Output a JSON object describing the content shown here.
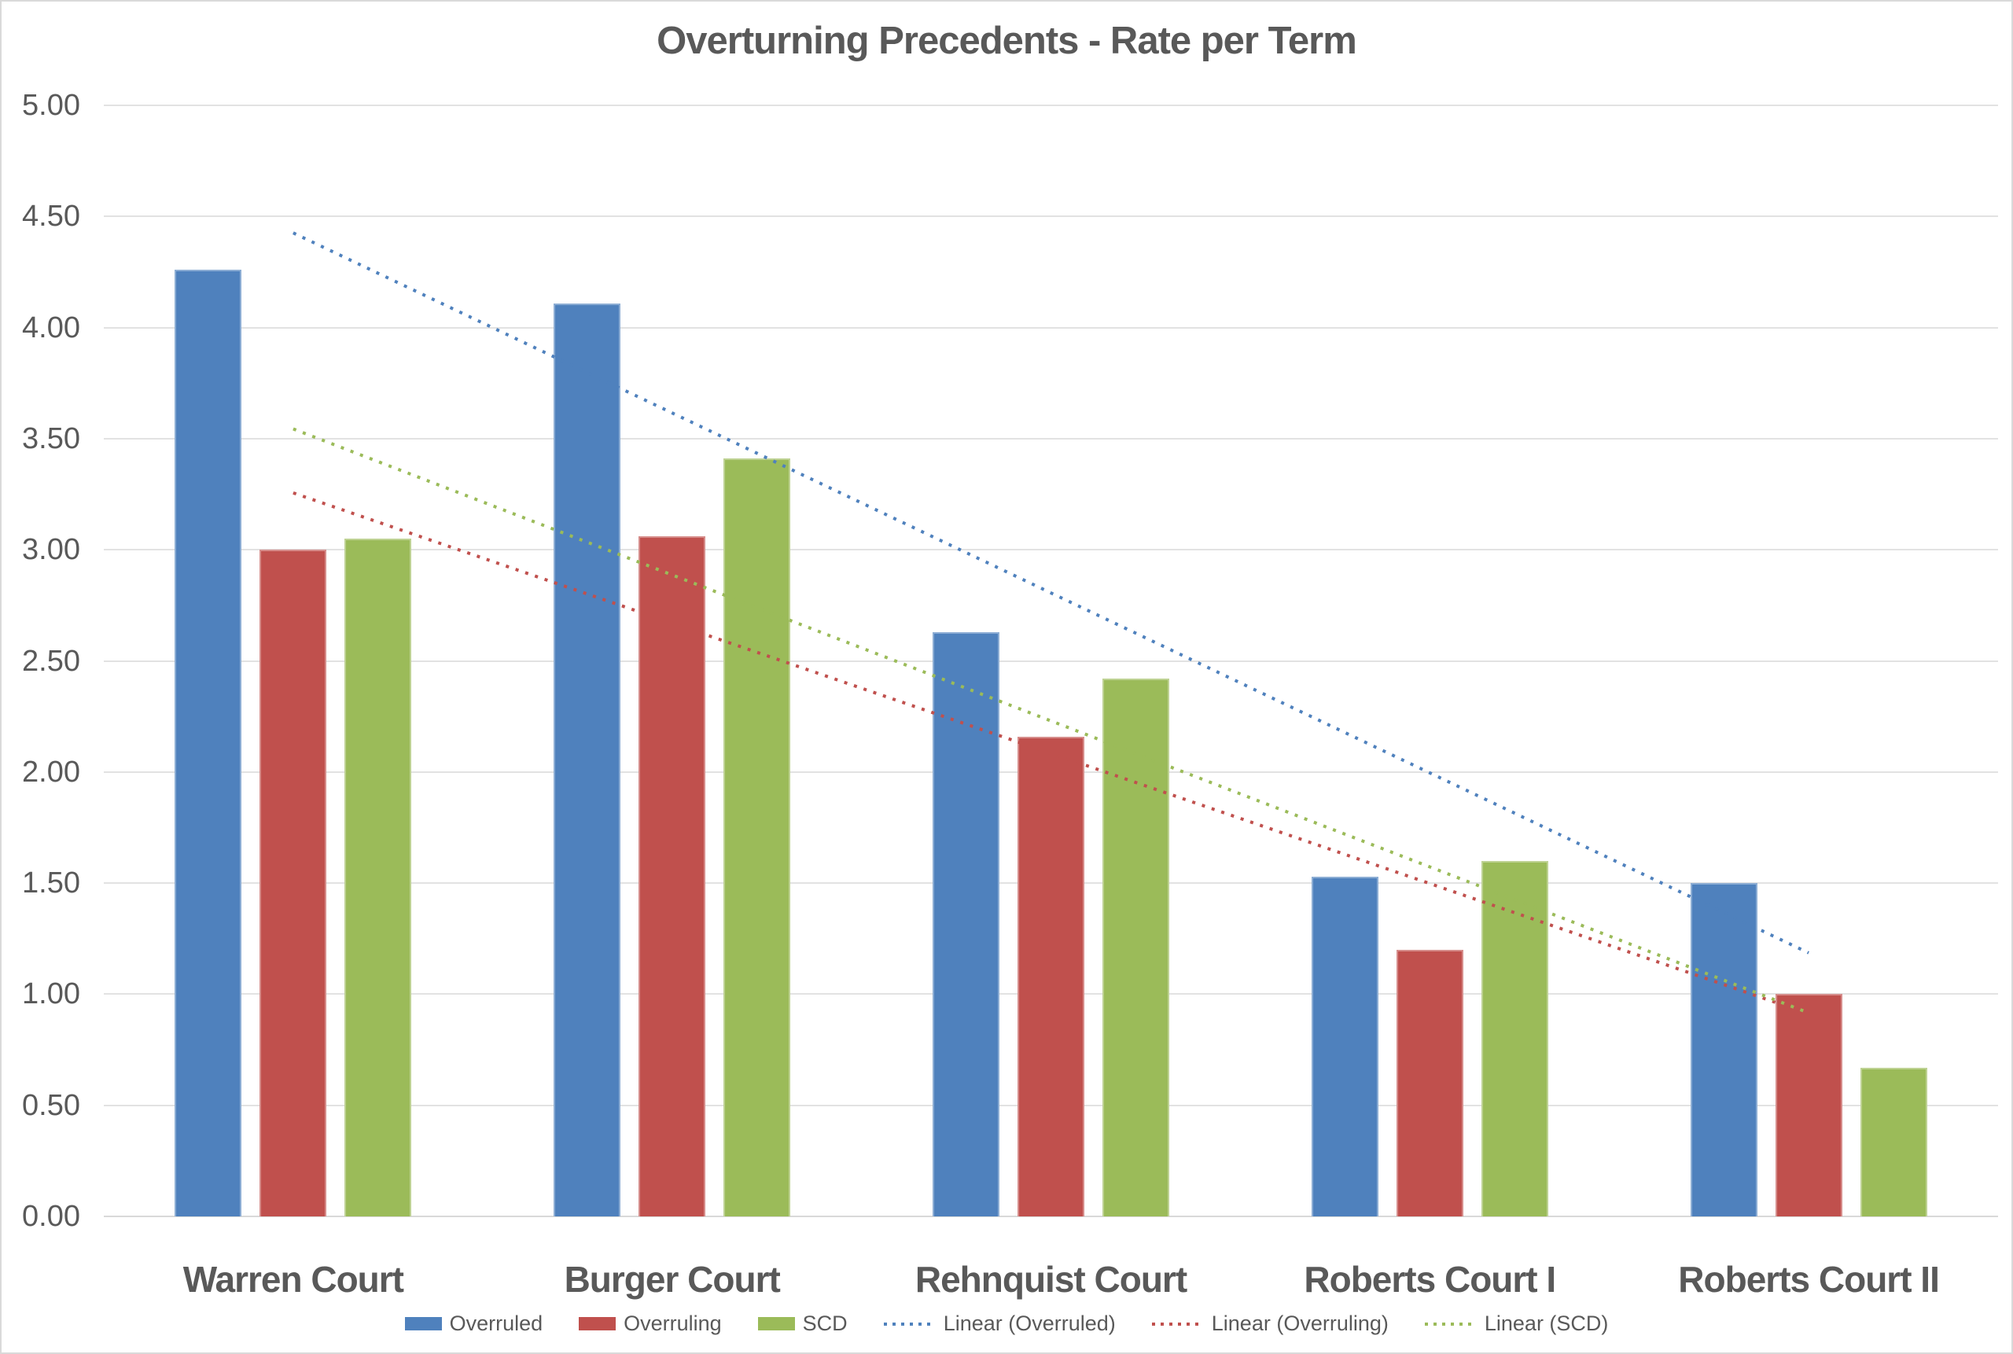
{
  "chart_data": {
    "type": "bar",
    "title": "Overturning Precedents - Rate per Term",
    "categories": [
      "Warren Court",
      "Burger Court",
      "Rehnquist Court",
      "Roberts Court I",
      "Roberts Court II"
    ],
    "series": [
      {
        "name": "Overruled",
        "color": "#4F81BD",
        "values": [
          4.26,
          4.11,
          2.63,
          1.53,
          1.5
        ]
      },
      {
        "name": "Overruling",
        "color": "#C0504D",
        "values": [
          3.0,
          3.06,
          2.16,
          1.2,
          1.0
        ]
      },
      {
        "name": "SCD",
        "color": "#9BBB59",
        "values": [
          3.05,
          3.41,
          2.42,
          1.6,
          0.67
        ]
      }
    ],
    "trendlines": [
      {
        "name": "Linear (Overruled)",
        "series_index": 0,
        "color": "#4F81BD",
        "style": "dotted"
      },
      {
        "name": "Linear (Overruling)",
        "series_index": 1,
        "color": "#C0504D",
        "style": "dotted"
      },
      {
        "name": "Linear (SCD)",
        "series_index": 2,
        "color": "#9BBB59",
        "style": "dotted"
      }
    ],
    "y_axis": {
      "min": 0,
      "max": 5,
      "step": 0.5,
      "tick_labels": [
        "0.00",
        "0.50",
        "1.00",
        "1.50",
        "2.00",
        "2.50",
        "3.00",
        "3.50",
        "4.00",
        "4.50",
        "5.00"
      ]
    },
    "grid": true,
    "legend_position": "bottom",
    "colors": {
      "text": "#595959",
      "gridline": "#E2E2E2",
      "background": "#FFFFFF"
    }
  }
}
